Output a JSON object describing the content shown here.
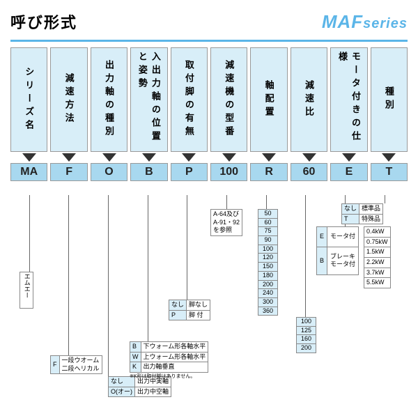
{
  "title": "呼び形式",
  "series": "MAF",
  "series_suffix": "series",
  "columns": [
    {
      "hdr": "シリーズ名",
      "code": "MA"
    },
    {
      "hdr": "減速方法",
      "code": "F"
    },
    {
      "hdr": "出力軸の種別",
      "code": "O"
    },
    {
      "hdr": "入出力軸の位置と姿勢",
      "code": "B"
    },
    {
      "hdr": "取付脚の有無",
      "code": "P"
    },
    {
      "hdr": "減速機の型番",
      "code": "100"
    },
    {
      "hdr": "軸配置",
      "code": "R"
    },
    {
      "hdr": "減速比",
      "code": "60"
    },
    {
      "hdr": "モータ付きの仕様",
      "code": "E"
    },
    {
      "hdr": "種別",
      "code": "T"
    }
  ],
  "d_ma": "エムエー",
  "d_f": [
    [
      "F",
      "一段ウオーム\n二段ヘリカル"
    ]
  ],
  "d_o": [
    [
      "なし",
      "出力中実軸"
    ],
    [
      "O(オー)",
      "出力中空軸"
    ]
  ],
  "d_b": [
    [
      "B",
      "下ウォーム形各軸水平"
    ],
    [
      "W",
      "上ウォーム形各軸水平"
    ],
    [
      "K",
      "出力軸垂直"
    ]
  ],
  "d_b_note": "※K形は取付脚はありません。",
  "d_p": [
    [
      "なし",
      "脚なし"
    ],
    [
      "P",
      "脚 付"
    ]
  ],
  "d_100": "A-64及び\nA-91・92\nを参照",
  "d_r": [
    "50",
    "60",
    "75",
    "90",
    "100",
    "120",
    "150",
    "180",
    "200",
    "240",
    "300",
    "360"
  ],
  "d_60": [
    "100",
    "125",
    "160",
    "200"
  ],
  "d_e": [
    [
      "E",
      "モータ付"
    ],
    [
      "B",
      "ブレーキ\nモータ付"
    ]
  ],
  "d_e_kw": [
    "0.4kW",
    "0.75kW",
    "1.5kW",
    "2.2kW",
    "3.7kW",
    "5.5kW"
  ],
  "d_t": [
    [
      "なし",
      "標準品"
    ],
    [
      "T",
      "特殊品"
    ]
  ]
}
